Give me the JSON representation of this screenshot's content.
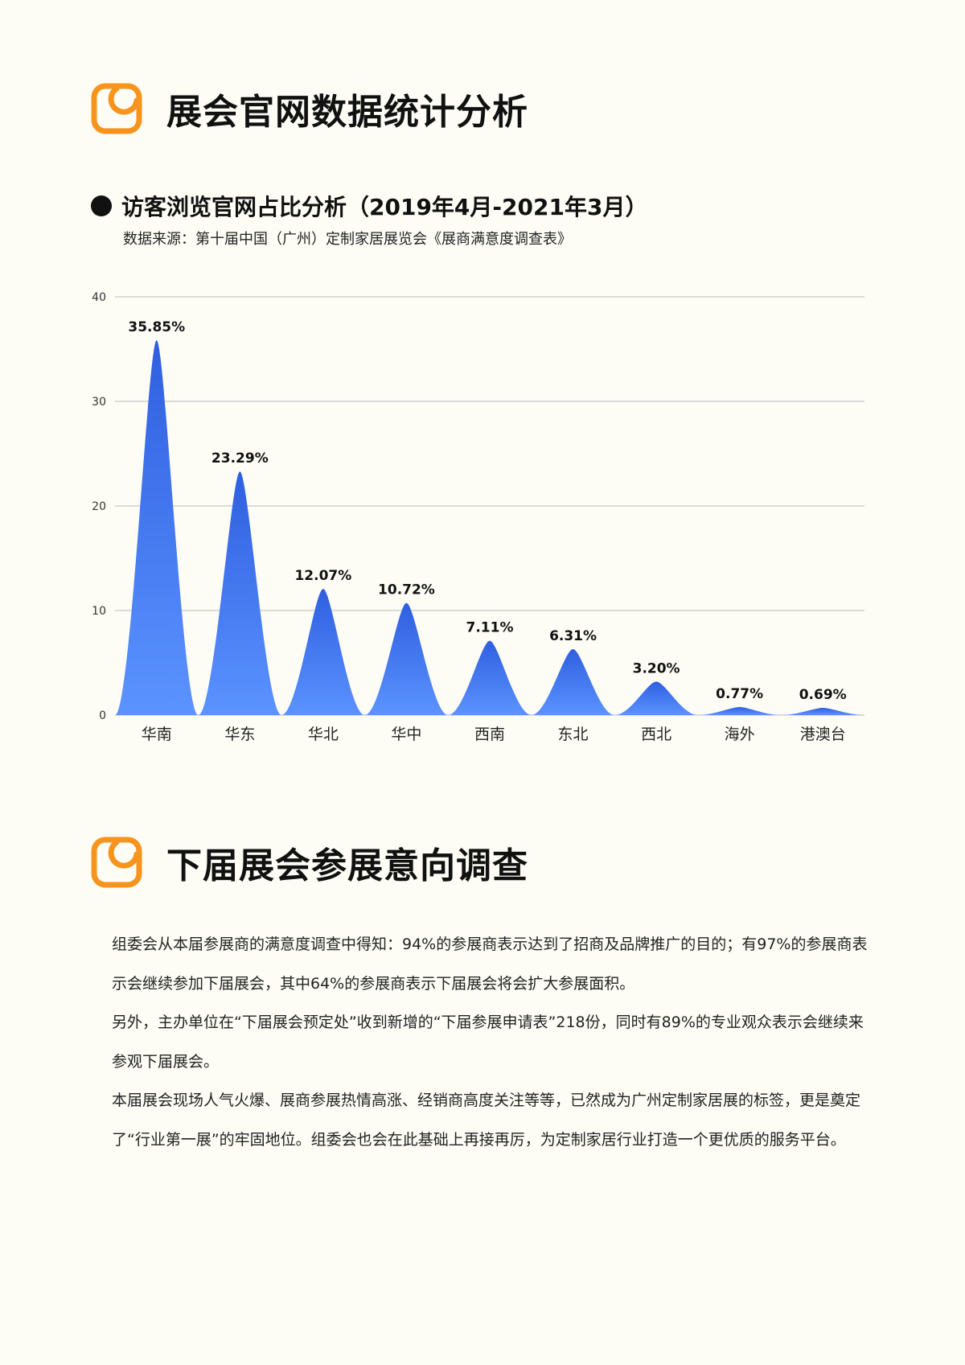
{
  "sections": [
    {
      "title": "展会官网数据统计分析",
      "icon": "orange-rounded-square-logo-icon"
    },
    {
      "title": "下届展会参展意向调查",
      "icon": "orange-rounded-square-logo-icon"
    }
  ],
  "colors": {
    "accent": "#f7941d",
    "bar_top": "#2f5fe0",
    "bar_bottom": "#5b93ff",
    "grid": "#bbbbbb"
  },
  "chart_data": {
    "type": "area",
    "title": "访客浏览官网占比分析（2019年4月-2021年3月）",
    "subtitle": "数据来源：第十届中国（广州）定制家居展览会《展商满意度调查表》",
    "categories": [
      "华南",
      "华东",
      "华北",
      "华中",
      "西南",
      "东北",
      "西北",
      "海外",
      "港澳台"
    ],
    "values": [
      35.85,
      23.29,
      12.07,
      10.72,
      7.11,
      6.31,
      3.2,
      0.77,
      0.69
    ],
    "value_labels": [
      "35.85%",
      "23.29%",
      "12.07%",
      "10.72%",
      "7.11%",
      "6.31%",
      "3.20%",
      "0.77%",
      "0.69%"
    ],
    "ylim": [
      0,
      40
    ],
    "yticks": [
      "0",
      "10",
      "20",
      "30",
      "40"
    ],
    "grid": true,
    "legend": "none"
  },
  "paragraphs": [
    "组委会从本届参展商的满意度调查中得知：94%的参展商表示达到了招商及品牌推广的目的；有97%的参展商表示会继续参加下届展会，其中64%的参展商表示下届展会将会扩大参展面积。",
    "另外，主办单位在“下届展会预定处”收到新增的“下届参展申请表”218份，同时有89%的专业观众表示会继续来参观下届展会。",
    "本届展会现场人气火爆、展商参展热情高涨、经销商高度关注等等，已然成为广州定制家居展的标签，更是奠定了“行业第一展”的牢固地位。组委会也会在此基础上再接再厉，为定制家居行业打造一个更优质的服务平台。"
  ]
}
